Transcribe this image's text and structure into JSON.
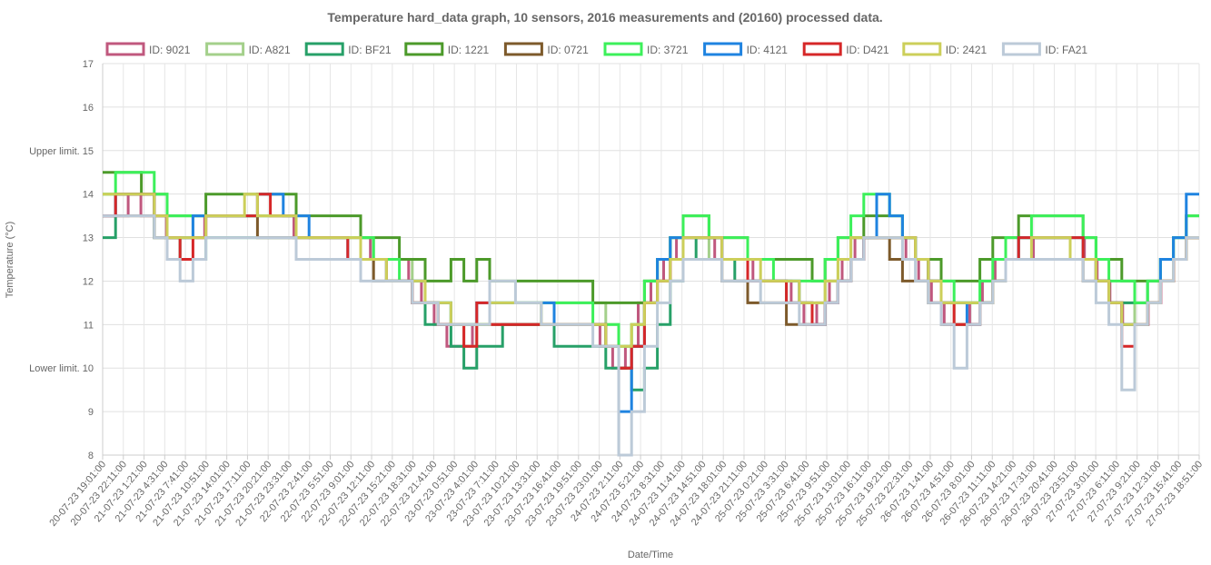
{
  "chart_data": {
    "type": "line",
    "title": "Temperature hard_data graph, 10 sensors, 2016 measurements and (20160) processed data.",
    "xlabel": "Date/Time",
    "ylabel": "Temperature (°C)",
    "ylim": [
      8,
      17
    ],
    "y_ticks": [
      {
        "value": 17,
        "label": "17"
      },
      {
        "value": 16,
        "label": "16"
      },
      {
        "value": 15,
        "label": "Upper limit. 15"
      },
      {
        "value": 14,
        "label": "14"
      },
      {
        "value": 13,
        "label": "13"
      },
      {
        "value": 12,
        "label": "12"
      },
      {
        "value": 11,
        "label": "11"
      },
      {
        "value": 10,
        "label": "Lower limit. 10"
      },
      {
        "value": 9,
        "label": "9"
      },
      {
        "value": 8,
        "label": "8"
      }
    ],
    "x_ticks": [
      "20-07-23 19:01:00",
      "20-07-23 22:11:00",
      "21-07-23 1:21:00",
      "21-07-23 4:31:00",
      "21-07-23 7:41:00",
      "21-07-23 10:51:00",
      "21-07-23 14:01:00",
      "21-07-23 17:11:00",
      "21-07-23 20:21:00",
      "21-07-23 23:31:00",
      "22-07-23 2:41:00",
      "22-07-23 5:51:00",
      "22-07-23 9:01:00",
      "22-07-23 12:11:00",
      "22-07-23 15:21:00",
      "22-07-23 18:31:00",
      "22-07-23 21:41:00",
      "23-07-23 0:51:00",
      "23-07-23 4:01:00",
      "23-07-23 7:11:00",
      "23-07-23 10:21:00",
      "23-07-23 13:31:00",
      "23-07-23 16:41:00",
      "23-07-23 19:51:00",
      "23-07-23 23:01:00",
      "24-07-23 2:11:00",
      "24-07-23 5:21:00",
      "24-07-23 8:31:00",
      "24-07-23 11:41:00",
      "24-07-23 14:51:00",
      "24-07-23 18:01:00",
      "24-07-23 21:11:00",
      "25-07-23 0:21:00",
      "25-07-23 3:31:00",
      "25-07-23 6:41:00",
      "25-07-23 9:51:00",
      "25-07-23 13:01:00",
      "25-07-23 16:11:00",
      "25-07-23 19:21:00",
      "25-07-23 22:31:00",
      "26-07-23 1:41:00",
      "26-07-23 4:51:00",
      "26-07-23 8:01:00",
      "26-07-23 11:11:00",
      "26-07-23 14:21:00",
      "26-07-23 17:31:00",
      "26-07-23 20:41:00",
      "26-07-23 23:51:00",
      "27-07-23 3:01:00",
      "27-07-23 6:11:00",
      "27-07-23 9:21:00",
      "27-07-23 12:31:00",
      "27-07-23 15:41:00",
      "27-07-23 18:51:00"
    ],
    "grid": true,
    "legend_position": "top",
    "series": [
      {
        "name": "ID: 9021",
        "color": "#c0587e",
        "values": [
          13.5,
          13.5,
          14,
          13.5,
          13.5,
          13,
          13,
          13,
          13.5,
          13.5,
          13.5,
          13.5,
          13.5,
          13.5,
          13.5,
          13,
          13,
          13,
          13,
          13,
          13,
          12.5,
          12.5,
          12.5,
          12,
          11.5,
          11,
          10.5,
          10.5,
          11,
          11,
          11,
          11,
          11,
          11,
          11,
          11,
          11,
          11,
          10.5,
          10,
          10.5,
          11.5,
          12,
          12.5,
          13,
          13,
          13,
          12.5,
          12.5,
          12.5,
          12,
          12,
          12,
          11.5,
          11,
          11.5,
          12,
          12.5,
          13,
          13,
          13,
          13,
          12.5,
          12,
          11.5,
          11,
          11,
          11.5,
          12,
          12.5,
          12.5,
          12.5,
          13,
          13,
          13,
          13,
          12.5,
          12,
          11.5,
          11,
          11,
          11.5,
          12,
          12.5,
          13
        ]
      },
      {
        "name": "ID: A821",
        "color": "#a4d08b",
        "values": [
          14,
          14,
          14,
          14,
          13.5,
          13,
          13,
          13.5,
          13.5,
          13.5,
          13.5,
          13.5,
          13.5,
          13.5,
          13.5,
          13,
          13,
          13,
          13,
          13,
          13,
          12.5,
          12.5,
          12.5,
          12,
          11.5,
          11.5,
          11,
          10.5,
          11,
          11,
          11,
          11,
          11,
          11.5,
          11.5,
          11.5,
          11.5,
          11.5,
          11,
          10.5,
          11,
          12,
          12.5,
          13,
          13,
          13,
          12.5,
          12.5,
          12.5,
          12,
          12,
          12,
          12,
          11.5,
          11.5,
          12,
          12.5,
          13,
          13,
          13,
          13,
          13,
          12.5,
          12,
          11.5,
          11,
          11,
          11.5,
          12,
          12.5,
          13,
          13,
          13,
          13,
          13,
          12.5,
          12,
          11.5,
          11.5,
          11,
          11.5,
          12,
          12.5,
          13
        ]
      },
      {
        "name": "ID: BF21",
        "color": "#27a068",
        "values": [
          13,
          14,
          14,
          14,
          13,
          13,
          12.5,
          12.5,
          13,
          13,
          13,
          13,
          13,
          13,
          13,
          12.5,
          12.5,
          12.5,
          12.5,
          12.5,
          12.5,
          12.5,
          12,
          12,
          11.5,
          11,
          11,
          10.5,
          10,
          10.5,
          10.5,
          11,
          11,
          11,
          11,
          10.5,
          10.5,
          10.5,
          10.5,
          10,
          10,
          9.5,
          10,
          11,
          12,
          12.5,
          13,
          13,
          12.5,
          12,
          12,
          12,
          12,
          11.5,
          11.5,
          11,
          11.5,
          12,
          12.5,
          13,
          13,
          13,
          13,
          12.5,
          12,
          11.5,
          11.5,
          11.5,
          11.5,
          12,
          12.5,
          13,
          13,
          13,
          13,
          12.5,
          12.5,
          12,
          11.5,
          11.5,
          11.5,
          12,
          12.5,
          13,
          13
        ]
      },
      {
        "name": "ID: 1221",
        "color": "#4c9a2a",
        "values": [
          14.5,
          14.5,
          14.5,
          14,
          14,
          13.5,
          13.5,
          13.5,
          14,
          14,
          14,
          14,
          14,
          14,
          14,
          13.5,
          13.5,
          13.5,
          13.5,
          13.5,
          13,
          13,
          13,
          12.5,
          12.5,
          12,
          12,
          12.5,
          12,
          12.5,
          12,
          12,
          12,
          12,
          12,
          12,
          12,
          12,
          11.5,
          11.5,
          11.5,
          11.5,
          12,
          12.5,
          13,
          13.5,
          13.5,
          13,
          13,
          13,
          12.5,
          12.5,
          12.5,
          12.5,
          12.5,
          12,
          12.5,
          13,
          13,
          13.5,
          13.5,
          13.5,
          13,
          12.5,
          12.5,
          12,
          12,
          12,
          12.5,
          13,
          13,
          13.5,
          13.5,
          13.5,
          13.5,
          13.5,
          13,
          12.5,
          12.5,
          12,
          12,
          12,
          12.5,
          13,
          13.5
        ]
      },
      {
        "name": "ID: 0721",
        "color": "#7d5a2b",
        "values": [
          13.5,
          13.5,
          13.5,
          13.5,
          13,
          13,
          13,
          13,
          13.5,
          13.5,
          13.5,
          13.5,
          13,
          13,
          13,
          12.5,
          12.5,
          12.5,
          12.5,
          12.5,
          12.5,
          12,
          12,
          12,
          11.5,
          11.5,
          11,
          11,
          11,
          11,
          11,
          11,
          11,
          11,
          11,
          11,
          11,
          11,
          11,
          10.5,
          10,
          10.5,
          11.5,
          12,
          12.5,
          12.5,
          12.5,
          12.5,
          12,
          12,
          11.5,
          11.5,
          11.5,
          11,
          11,
          11,
          11.5,
          12,
          12.5,
          13,
          13,
          12.5,
          12,
          12,
          11.5,
          11,
          11,
          11,
          11.5,
          12,
          12.5,
          12.5,
          12.5,
          12.5,
          12.5,
          12.5,
          12,
          12,
          11.5,
          11,
          11,
          11.5,
          12,
          12.5,
          13
        ]
      },
      {
        "name": "ID: 3721",
        "color": "#3cf05a",
        "values": [
          14,
          14.5,
          14.5,
          14.5,
          14,
          13.5,
          13.5,
          13.5,
          13.5,
          13.5,
          13.5,
          13.5,
          13.5,
          13.5,
          13.5,
          13,
          13,
          13,
          13,
          13,
          13,
          12.5,
          12.5,
          12,
          12,
          11.5,
          11.5,
          11,
          11,
          11,
          11.5,
          11.5,
          11.5,
          11.5,
          11.5,
          11.5,
          11.5,
          11.5,
          11,
          11,
          10.5,
          11,
          12,
          12.5,
          13,
          13.5,
          13.5,
          13,
          13,
          13,
          12.5,
          12.5,
          12,
          12,
          12,
          12,
          12.5,
          13,
          13.5,
          14,
          14,
          13.5,
          13,
          12.5,
          12,
          12,
          11.5,
          11.5,
          12,
          12.5,
          13,
          13,
          13.5,
          13.5,
          13.5,
          13.5,
          13,
          12.5,
          12,
          12,
          11.5,
          12,
          12.5,
          13,
          13.5
        ]
      },
      {
        "name": "ID: 4121",
        "color": "#1f83e0",
        "values": [
          13.5,
          14,
          14,
          14,
          13.5,
          13,
          13,
          13.5,
          13.5,
          13.5,
          13.5,
          13.5,
          14,
          14,
          13.5,
          13.5,
          13,
          13,
          13,
          12.5,
          12.5,
          12.5,
          12,
          12,
          12,
          11.5,
          11.5,
          11,
          11,
          11.5,
          11.5,
          11.5,
          11.5,
          11.5,
          11.5,
          11,
          11,
          11,
          11,
          10.5,
          9,
          10.5,
          11.5,
          12.5,
          13,
          13,
          13,
          13,
          12.5,
          12.5,
          12,
          12,
          12,
          12,
          11.5,
          11,
          11.5,
          12,
          12.5,
          13,
          14,
          13.5,
          13,
          12.5,
          12,
          11.5,
          11.5,
          11,
          11.5,
          12,
          12.5,
          13,
          13,
          13,
          13,
          13,
          12.5,
          12,
          11.5,
          11,
          11,
          11.5,
          12.5,
          13,
          14
        ]
      },
      {
        "name": "ID: D421",
        "color": "#d62728",
        "values": [
          13.5,
          14,
          14,
          14,
          13.5,
          13,
          12.5,
          13,
          13.5,
          13.5,
          13.5,
          13.5,
          14,
          13.5,
          13.5,
          13,
          13,
          13,
          13,
          12.5,
          12.5,
          12.5,
          12,
          12,
          11.5,
          11.5,
          11,
          11,
          10.5,
          11.5,
          11,
          11,
          11,
          11,
          11,
          11,
          11,
          11,
          11,
          10.5,
          10,
          10.5,
          11.5,
          12,
          12.5,
          13,
          13,
          13,
          12.5,
          12.5,
          12,
          12,
          12,
          11.5,
          11.5,
          11,
          11.5,
          12,
          12.5,
          13,
          13,
          13,
          13,
          12.5,
          12,
          11.5,
          11,
          11,
          11.5,
          12,
          12.5,
          13,
          13,
          13,
          13,
          13,
          12.5,
          12,
          11.5,
          10.5,
          11,
          11.5,
          12,
          12.5,
          13
        ]
      },
      {
        "name": "ID: 2421",
        "color": "#cccf5a",
        "values": [
          14,
          14,
          14,
          14,
          13.5,
          13,
          13,
          13,
          13.5,
          13.5,
          13.5,
          14,
          13.5,
          13.5,
          13.5,
          13,
          13,
          13,
          13,
          13,
          12.5,
          12.5,
          12,
          12,
          12,
          11.5,
          11.5,
          11,
          11,
          11,
          11.5,
          11.5,
          11.5,
          11.5,
          11,
          11,
          11,
          11,
          11,
          10.5,
          10.5,
          11,
          11.5,
          12,
          12.5,
          13,
          13,
          13,
          12.5,
          12.5,
          12.5,
          12,
          12,
          12,
          11.5,
          11.5,
          12,
          12.5,
          13,
          13,
          13,
          13,
          13,
          12.5,
          12,
          11.5,
          11.5,
          11.5,
          11.5,
          12,
          12.5,
          12.5,
          13,
          13,
          13,
          12.5,
          12.5,
          12,
          11.5,
          11,
          11,
          11.5,
          12,
          12.5,
          13
        ]
      },
      {
        "name": "ID: FA21",
        "color": "#bccad8",
        "values": [
          13.5,
          13.5,
          13.5,
          13.5,
          13,
          12.5,
          12,
          12.5,
          13,
          13,
          13,
          13,
          13,
          13,
          13,
          12.5,
          12.5,
          12.5,
          12.5,
          12.5,
          12,
          12,
          12,
          12,
          11.5,
          11.5,
          11,
          11,
          11,
          11,
          12,
          12,
          11.5,
          11.5,
          11,
          11,
          11,
          11,
          10.5,
          10.5,
          8,
          9,
          10.5,
          11.5,
          12,
          12.5,
          12.5,
          12.5,
          12,
          12,
          12,
          11.5,
          11.5,
          11.5,
          11,
          11,
          11.5,
          12,
          12.5,
          13,
          13,
          13,
          12.5,
          12,
          11.5,
          11,
          10,
          11,
          11.5,
          12,
          12.5,
          12.5,
          12.5,
          12.5,
          12.5,
          12.5,
          12,
          11.5,
          11,
          9.5,
          11,
          11.5,
          12,
          12.5,
          13
        ]
      }
    ]
  }
}
